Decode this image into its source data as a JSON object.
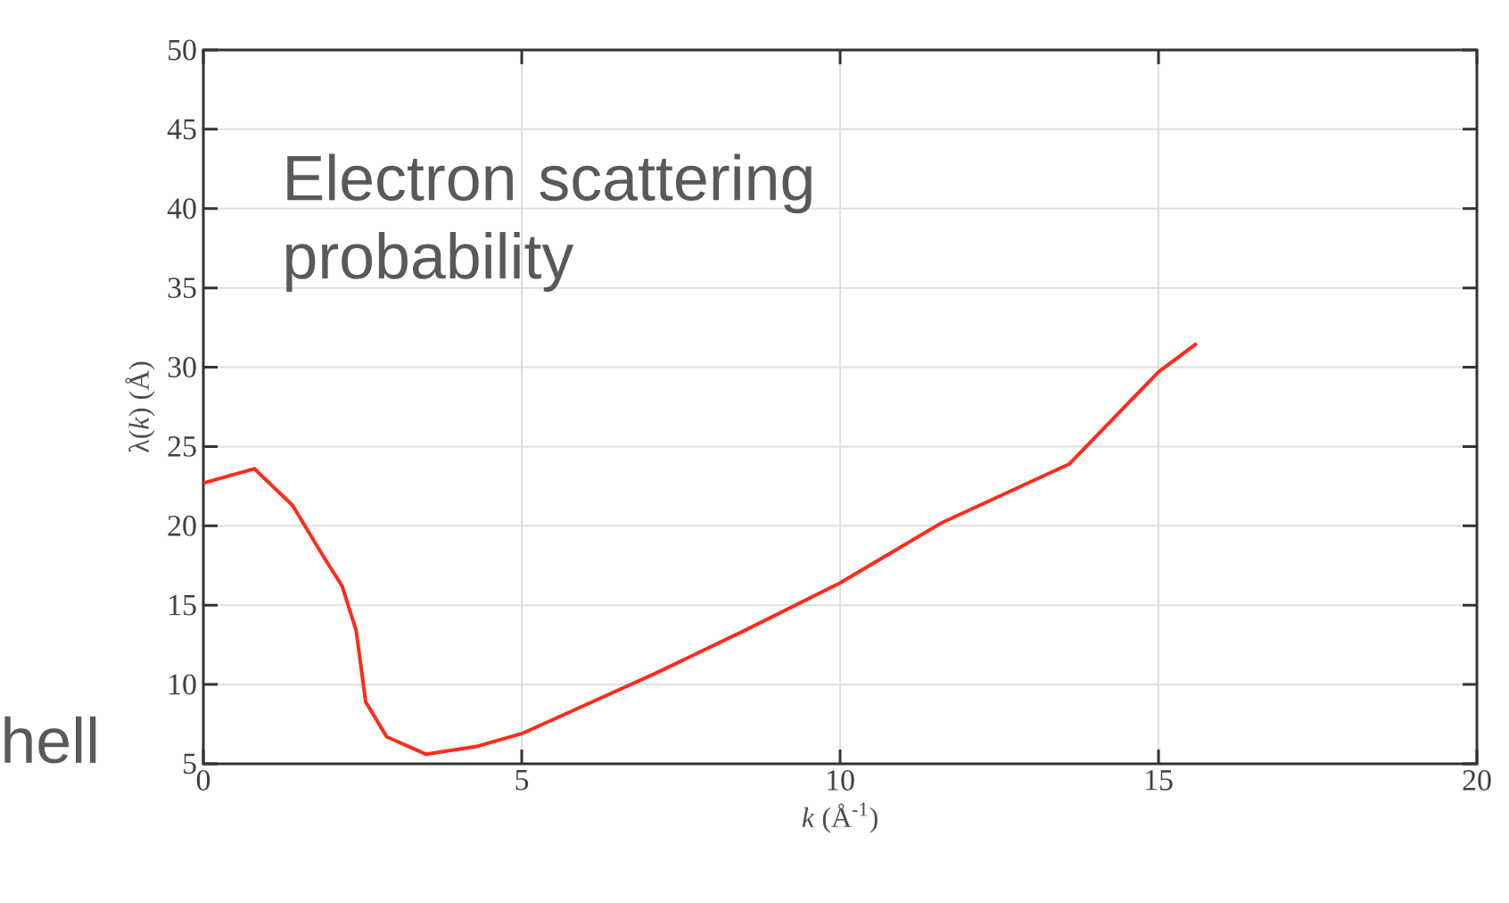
{
  "chart_data": {
    "type": "line",
    "xlabel": "*k* (Å$^{-1}$)",
    "ylabel": "λ(*k*) (Å)",
    "annotations": [
      "Electron scattering probability",
      "hell"
    ],
    "x": [
      0,
      0.8,
      1.4,
      1.85,
      2.18,
      2.4,
      2.55,
      2.88,
      3.5,
      4.3,
      5,
      7.1,
      8.5,
      10,
      11.6,
      13.6,
      15,
      15.6
    ],
    "series": [
      {
        "color": "#ff2a1a",
        "values": [
          22.7,
          23.6,
          21.3,
          18.3,
          16.2,
          13.4,
          8.9,
          6.7,
          5.6,
          6.1,
          6.9,
          10.7,
          13.4,
          16.4,
          20.2,
          23.9,
          29.7,
          31.5
        ]
      }
    ],
    "xlim": [
      0,
      20
    ],
    "ylim": [
      5,
      50
    ],
    "xticks": [
      0,
      5,
      10,
      15,
      20
    ],
    "yticks": [
      5,
      10,
      15,
      20,
      25,
      30,
      35,
      40,
      45,
      50
    ],
    "grid": true,
    "marker": "none",
    "line_style": "solid"
  }
}
